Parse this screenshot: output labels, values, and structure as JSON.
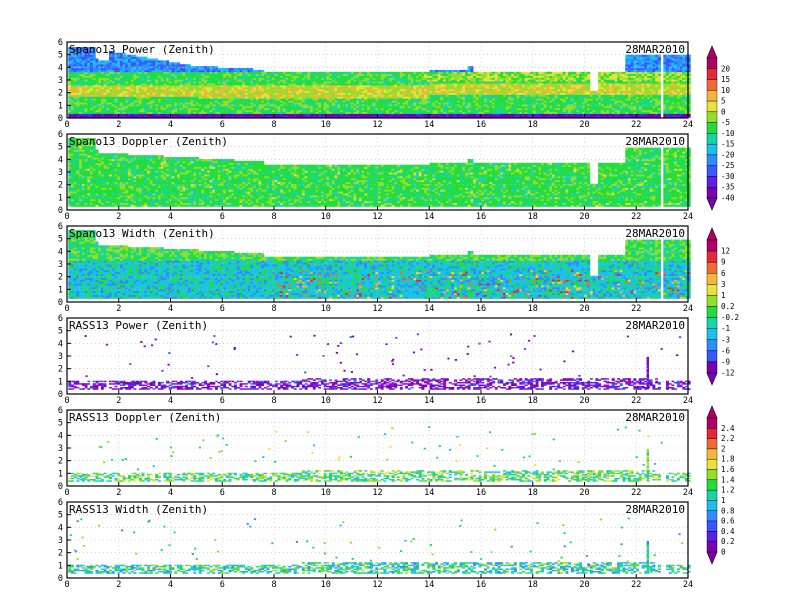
{
  "panels": [
    {
      "title": "Spano13 Power (Zenith)",
      "date": "28MAR2010",
      "kind": "spano",
      "variant": "power",
      "yticks": [
        "0",
        "1",
        "2",
        "3",
        "4",
        "5",
        "6"
      ],
      "scale": [
        "20",
        "15",
        "10",
        "5",
        "0",
        "-5",
        "-10",
        "-15",
        "-20",
        "-25",
        "-30",
        "-35",
        "-40"
      ],
      "scale_group": "a"
    },
    {
      "title": "Spano13 Doppler (Zenith)",
      "date": "28MAR2010",
      "kind": "spano",
      "variant": "doppler",
      "yticks": [
        "0",
        "1",
        "2",
        "3",
        "4",
        "5",
        "6"
      ],
      "scale_group": "a"
    },
    {
      "title": "Spano13 Width (Zenith)",
      "date": "28MAR2010",
      "kind": "spano",
      "variant": "width",
      "yticks": [
        "0",
        "1",
        "2",
        "3",
        "4",
        "5",
        "6"
      ],
      "scale": [
        "12",
        "9",
        "6",
        "3",
        "1",
        "0.2",
        "-0.2",
        "-1",
        "-3",
        "-6",
        "-9",
        "-12"
      ],
      "scale_group": "b"
    },
    {
      "title": "RASS13 Power (Zenith)",
      "date": "28MAR2010",
      "kind": "rass",
      "variant": "power",
      "yticks": [
        "0",
        "1",
        "2",
        "3",
        "4",
        "5",
        "6"
      ],
      "scale_group": "b"
    },
    {
      "title": "RASS13 Doppler (Zenith)",
      "date": "28MAR2010",
      "kind": "rass",
      "variant": "doppler",
      "yticks": [
        "0",
        "1",
        "2",
        "3",
        "4",
        "5",
        "6"
      ],
      "scale": [
        "2.4",
        "2.2",
        "2",
        "1.8",
        "1.6",
        "1.4",
        "1.2",
        "1",
        "0.8",
        "0.6",
        "0.4",
        "0.2",
        "0"
      ],
      "scale_group": "c"
    },
    {
      "title": "RASS13 Width (Zenith)",
      "date": "28MAR2010",
      "kind": "rass",
      "variant": "width",
      "yticks": [
        "0",
        "1",
        "2",
        "3",
        "4",
        "5",
        "6"
      ],
      "scale_group": "c"
    }
  ],
  "xticks": [
    "0",
    "2",
    "4",
    "6",
    "8",
    "10",
    "12",
    "14",
    "16",
    "18",
    "20",
    "22",
    "24"
  ],
  "colors": {
    "ramp": [
      "#7a00b0",
      "#5a1ee6",
      "#3b55ff",
      "#2f8cff",
      "#19c2ee",
      "#17d6a6",
      "#22dd3a",
      "#90e02a",
      "#e8e23a",
      "#f7b43a",
      "#f36a34",
      "#e3283a",
      "#b00068"
    ],
    "frame": "#000000",
    "grid": "#bbbbbb"
  },
  "chart_data": [
    {
      "type": "heatmap",
      "title": "Spano13 Power (Zenith)",
      "date": "28MAR2010",
      "x_range": [
        0,
        24
      ],
      "y_range": [
        0,
        6
      ],
      "x_step": 2,
      "y_step": 1,
      "colorbar": [
        "20",
        "15",
        "10",
        "5",
        "0",
        "-5",
        "-10",
        "-15",
        "-20",
        "-25",
        "-30",
        "-35",
        "-40"
      ]
    },
    {
      "type": "heatmap",
      "title": "Spano13 Doppler (Zenith)",
      "date": "28MAR2010",
      "x_range": [
        0,
        24
      ],
      "y_range": [
        0,
        6
      ],
      "x_step": 2,
      "y_step": 1
    },
    {
      "type": "heatmap",
      "title": "Spano13 Width (Zenith)",
      "date": "28MAR2010",
      "x_range": [
        0,
        24
      ],
      "y_range": [
        0,
        6
      ],
      "x_step": 2,
      "y_step": 1,
      "colorbar": [
        "12",
        "9",
        "6",
        "3",
        "1",
        "0.2",
        "-0.2",
        "-1",
        "-3",
        "-6",
        "-9",
        "-12"
      ]
    },
    {
      "type": "heatmap",
      "title": "RASS13 Power (Zenith)",
      "date": "28MAR2010",
      "x_range": [
        0,
        24
      ],
      "y_range": [
        0,
        6
      ],
      "x_step": 2,
      "y_step": 1
    },
    {
      "type": "heatmap",
      "title": "RASS13 Doppler (Zenith)",
      "date": "28MAR2010",
      "x_range": [
        0,
        24
      ],
      "y_range": [
        0,
        6
      ],
      "x_step": 2,
      "y_step": 1,
      "colorbar": [
        "2.4",
        "2.2",
        "2",
        "1.8",
        "1.6",
        "1.4",
        "1.2",
        "1",
        "0.8",
        "0.6",
        "0.4",
        "0.2",
        "0"
      ]
    },
    {
      "type": "heatmap",
      "title": "RASS13 Width (Zenith)",
      "date": "28MAR2010",
      "x_range": [
        0,
        24
      ],
      "y_range": [
        0,
        6
      ],
      "x_step": 2,
      "y_step": 1
    }
  ]
}
